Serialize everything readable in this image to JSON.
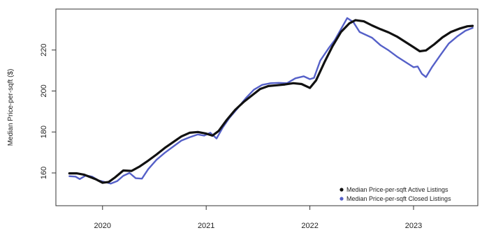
{
  "chart_data": {
    "type": "line",
    "title": "",
    "xlabel": "",
    "ylabel": "Median Price-per-sqft ($)",
    "xlim": [
      2019.55,
      2023.62
    ],
    "ylim": [
      144,
      240
    ],
    "x_ticks": [
      2020,
      2021,
      2022,
      2023
    ],
    "x_tick_labels": [
      "2020",
      "2021",
      "2022",
      "2023"
    ],
    "y_ticks": [
      160,
      180,
      200,
      220
    ],
    "y_tick_labels": [
      "160",
      "180",
      "200",
      "220"
    ],
    "grid": false,
    "legend_position": "bottom-right",
    "series": [
      {
        "name": "Median Price-per-sqft Active Listings",
        "color": "#111111",
        "points": [
          [
            2019.68,
            159.8
          ],
          [
            2019.75,
            159.8
          ],
          [
            2019.82,
            159.2
          ],
          [
            2019.88,
            158.0
          ],
          [
            2019.94,
            156.8
          ],
          [
            2020.0,
            155.2
          ],
          [
            2020.06,
            155.6
          ],
          [
            2020.12,
            157.8
          ],
          [
            2020.2,
            161.2
          ],
          [
            2020.28,
            161.0
          ],
          [
            2020.36,
            163.2
          ],
          [
            2020.44,
            166.0
          ],
          [
            2020.52,
            169.0
          ],
          [
            2020.6,
            172.2
          ],
          [
            2020.68,
            175.0
          ],
          [
            2020.76,
            177.8
          ],
          [
            2020.84,
            179.6
          ],
          [
            2020.92,
            180.0
          ],
          [
            2021.0,
            179.2
          ],
          [
            2021.06,
            178.2
          ],
          [
            2021.12,
            180.5
          ],
          [
            2021.2,
            186.0
          ],
          [
            2021.28,
            190.8
          ],
          [
            2021.36,
            194.6
          ],
          [
            2021.44,
            197.8
          ],
          [
            2021.52,
            201.0
          ],
          [
            2021.6,
            202.4
          ],
          [
            2021.68,
            202.8
          ],
          [
            2021.76,
            203.2
          ],
          [
            2021.84,
            203.8
          ],
          [
            2021.92,
            203.4
          ],
          [
            2022.0,
            201.5
          ],
          [
            2022.06,
            205.2
          ],
          [
            2022.14,
            214.0
          ],
          [
            2022.22,
            222.0
          ],
          [
            2022.3,
            228.8
          ],
          [
            2022.38,
            233.0
          ],
          [
            2022.44,
            234.6
          ],
          [
            2022.52,
            234.0
          ],
          [
            2022.6,
            232.0
          ],
          [
            2022.68,
            230.2
          ],
          [
            2022.76,
            228.6
          ],
          [
            2022.84,
            226.6
          ],
          [
            2022.92,
            224.0
          ],
          [
            2023.0,
            221.4
          ],
          [
            2023.06,
            219.4
          ],
          [
            2023.12,
            219.8
          ],
          [
            2023.2,
            222.8
          ],
          [
            2023.28,
            226.2
          ],
          [
            2023.36,
            228.8
          ],
          [
            2023.44,
            230.4
          ],
          [
            2023.52,
            231.6
          ],
          [
            2023.57,
            231.8
          ]
        ]
      },
      {
        "name": "Median Price-per-sqft Closed Listings",
        "color": "#5560c8",
        "points": [
          [
            2019.68,
            158.4
          ],
          [
            2019.74,
            158.2
          ],
          [
            2019.78,
            157.0
          ],
          [
            2019.84,
            158.8
          ],
          [
            2019.9,
            158.2
          ],
          [
            2019.96,
            156.4
          ],
          [
            2020.02,
            155.6
          ],
          [
            2020.08,
            154.8
          ],
          [
            2020.14,
            156.0
          ],
          [
            2020.2,
            158.6
          ],
          [
            2020.26,
            160.0
          ],
          [
            2020.32,
            157.4
          ],
          [
            2020.38,
            157.2
          ],
          [
            2020.44,
            161.8
          ],
          [
            2020.52,
            166.4
          ],
          [
            2020.6,
            169.8
          ],
          [
            2020.68,
            172.8
          ],
          [
            2020.76,
            175.8
          ],
          [
            2020.84,
            177.4
          ],
          [
            2020.92,
            178.8
          ],
          [
            2020.98,
            178.2
          ],
          [
            2021.04,
            179.6
          ],
          [
            2021.1,
            176.8
          ],
          [
            2021.16,
            182.2
          ],
          [
            2021.22,
            186.6
          ],
          [
            2021.3,
            191.4
          ],
          [
            2021.38,
            196.4
          ],
          [
            2021.46,
            200.6
          ],
          [
            2021.54,
            203.0
          ],
          [
            2021.62,
            203.8
          ],
          [
            2021.7,
            204.0
          ],
          [
            2021.78,
            203.8
          ],
          [
            2021.86,
            206.2
          ],
          [
            2021.94,
            207.2
          ],
          [
            2022.0,
            205.8
          ],
          [
            2022.04,
            206.4
          ],
          [
            2022.1,
            214.8
          ],
          [
            2022.18,
            220.8
          ],
          [
            2022.24,
            224.8
          ],
          [
            2022.3,
            230.2
          ],
          [
            2022.36,
            235.6
          ],
          [
            2022.42,
            233.6
          ],
          [
            2022.48,
            228.8
          ],
          [
            2022.54,
            227.4
          ],
          [
            2022.6,
            226.0
          ],
          [
            2022.68,
            222.4
          ],
          [
            2022.76,
            219.8
          ],
          [
            2022.84,
            216.8
          ],
          [
            2022.92,
            214.2
          ],
          [
            2023.0,
            211.6
          ],
          [
            2023.04,
            212.0
          ],
          [
            2023.08,
            208.4
          ],
          [
            2023.12,
            206.8
          ],
          [
            2023.18,
            211.8
          ],
          [
            2023.26,
            217.6
          ],
          [
            2023.34,
            223.2
          ],
          [
            2023.42,
            226.6
          ],
          [
            2023.5,
            229.4
          ],
          [
            2023.57,
            230.8
          ]
        ]
      }
    ]
  }
}
